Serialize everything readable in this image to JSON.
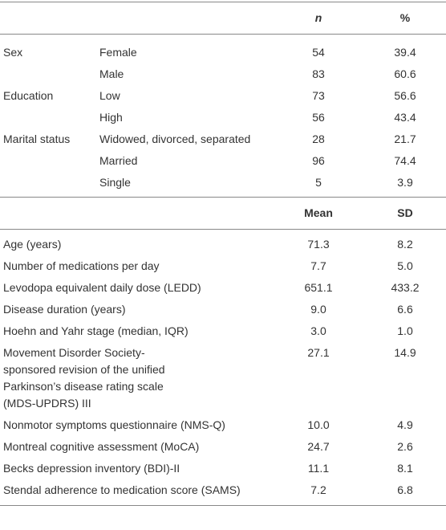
{
  "table1": {
    "header": {
      "n": "n",
      "pct": "%"
    },
    "rows": [
      {
        "group": "Sex",
        "label": "Female",
        "n": "54",
        "pct": "39.4"
      },
      {
        "label": "Male",
        "n": "83",
        "pct": "60.6"
      },
      {
        "group": "Education",
        "label": "Low",
        "n": "73",
        "pct": "56.6"
      },
      {
        "label": "High",
        "n": "56",
        "pct": "43.4"
      },
      {
        "group": "Marital status",
        "label": "Widowed, divorced, separated",
        "n": "28",
        "pct": "21.7"
      },
      {
        "label": "Married",
        "n": "96",
        "pct": "74.4"
      },
      {
        "label": "Single",
        "n": "5",
        "pct": "3.9"
      }
    ]
  },
  "table2": {
    "header": {
      "mean": "Mean",
      "sd": "SD"
    },
    "rows": [
      {
        "label": "Age (years)",
        "mean": "71.3",
        "sd": "8.2"
      },
      {
        "label": "Number of medications per day",
        "mean": "7.7",
        "sd": "5.0"
      },
      {
        "label": "Levodopa equivalent daily dose (LEDD)",
        "mean": "651.1",
        "sd": "433.2"
      },
      {
        "label": "Disease duration (years)",
        "mean": "9.0",
        "sd": "6.6"
      },
      {
        "label": "Hoehn and Yahr stage (median, IQR)",
        "mean": "3.0",
        "sd": "1.0"
      },
      {
        "label": "Movement Disorder Society-sponsored revision of the unified Parkinson’s disease rating scale (MDS-UPDRS) III",
        "mean": "27.1",
        "sd": "14.9"
      },
      {
        "label": "Nonmotor symptoms questionnaire (NMS-Q)",
        "mean": "10.0",
        "sd": "4.9"
      },
      {
        "label": "Montreal cognitive assessment (MoCA)",
        "mean": "24.7",
        "sd": "2.6"
      },
      {
        "label": "Becks depression inventory (BDI)-II",
        "mean": "11.1",
        "sd": "8.1"
      },
      {
        "label": "Stendal adherence to medication score (SAMS)",
        "mean": "7.2",
        "sd": "6.8"
      }
    ]
  }
}
